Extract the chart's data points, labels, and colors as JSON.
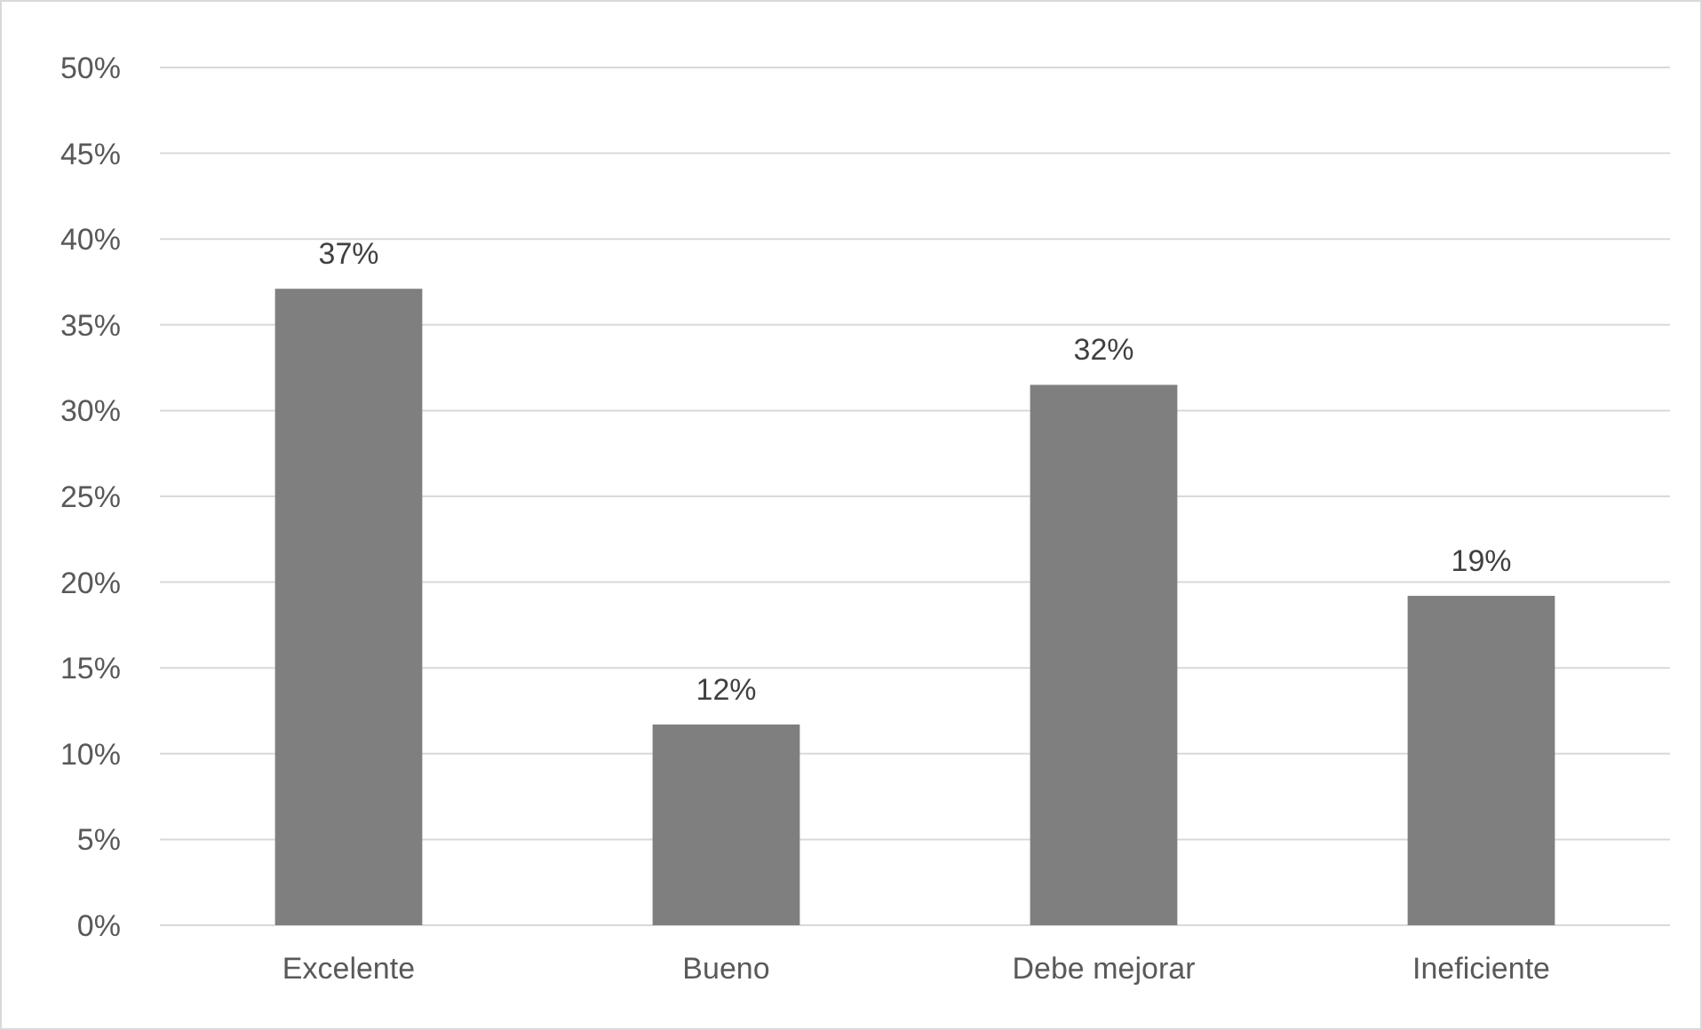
{
  "chart_data": {
    "type": "bar",
    "categories": [
      "Excelente",
      "Bueno",
      "Debe mejorar",
      "Ineficiente"
    ],
    "values": [
      37.1,
      11.7,
      31.5,
      19.2
    ],
    "value_labels": [
      "37%",
      "12%",
      "32%",
      "19%"
    ],
    "color": "#7f7f7f",
    "ylim": [
      0,
      50
    ],
    "yticks": [
      {
        "value": 0,
        "label": "0%"
      },
      {
        "value": 5,
        "label": "5%"
      },
      {
        "value": 10,
        "label": "10%"
      },
      {
        "value": 15,
        "label": "15%"
      },
      {
        "value": 20,
        "label": "20%"
      },
      {
        "value": 25,
        "label": "25%"
      },
      {
        "value": 30,
        "label": "30%"
      },
      {
        "value": 35,
        "label": "35%"
      },
      {
        "value": 40,
        "label": "40%"
      },
      {
        "value": 45,
        "label": "45%"
      },
      {
        "value": 50,
        "label": "50%"
      }
    ],
    "grid": "y"
  }
}
